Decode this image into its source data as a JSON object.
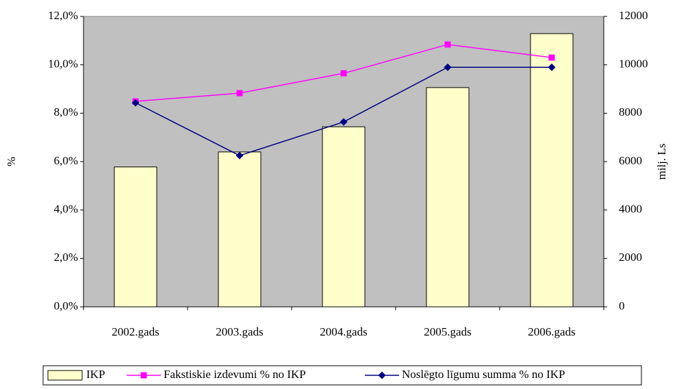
{
  "chart_data": {
    "type": "bar",
    "categories": [
      "2002.gads",
      "2003.gads",
      "2004.gads",
      "2005.gads",
      "2006.gads"
    ],
    "series": [
      {
        "name": "IKP",
        "type": "bar",
        "axis": "y2",
        "color": "#ffffcc",
        "values": [
          5780,
          6400,
          7440,
          9060,
          11290
        ]
      },
      {
        "name": "Fakstiskie izdevumi % no IKP",
        "type": "line",
        "marker": "square",
        "color": "#ff00ff",
        "values": [
          8.49,
          8.83,
          9.65,
          10.84,
          10.3
        ]
      },
      {
        "name": "Noslēgto līgumu summa % no IKP",
        "type": "line",
        "marker": "diamond",
        "color": "#000080",
        "values": [
          8.43,
          6.25,
          7.64,
          9.9,
          9.9
        ]
      }
    ],
    "y_label": "%",
    "y2_label": "milj. Ls",
    "ylim": [
      0,
      12
    ],
    "yticks": [
      {
        "value": 0,
        "label": "0,0%"
      },
      {
        "value": 2,
        "label": "2,0%"
      },
      {
        "value": 4,
        "label": "4,0%"
      },
      {
        "value": 6,
        "label": "6,0%"
      },
      {
        "value": 8,
        "label": "8,0%"
      },
      {
        "value": 10,
        "label": "10,0%"
      },
      {
        "value": 12,
        "label": "12,0%"
      }
    ],
    "y2lim": [
      0,
      12000
    ],
    "y2ticks": [
      0,
      2000,
      4000,
      6000,
      8000,
      10000,
      12000
    ],
    "plot_background": "#c0c0c0",
    "legend": "bottom"
  }
}
